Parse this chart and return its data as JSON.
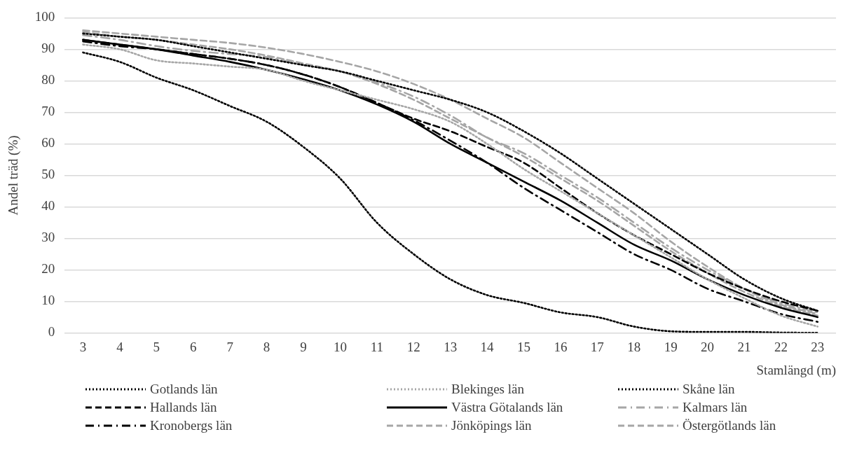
{
  "chart_data": {
    "type": "line",
    "xlabel": "Stamlängd (m)",
    "ylabel": "Andel träd (%)",
    "categories": [
      "3",
      "4",
      "5",
      "6",
      "7",
      "8",
      "9",
      "10",
      "11",
      "12",
      "13",
      "14",
      "15",
      "16",
      "17",
      "18",
      "19",
      "20",
      "21",
      "22",
      "23"
    ],
    "ylim": [
      0,
      100
    ],
    "yticks": [
      0,
      10,
      20,
      30,
      40,
      50,
      60,
      70,
      80,
      90,
      100
    ],
    "grid": "y",
    "legend": "bottom",
    "marker": "none",
    "series": [
      {
        "name": "Gotlands län",
        "color": "#000000",
        "line_style": "dotted",
        "values": [
          89,
          86,
          81,
          77,
          72,
          67,
          59,
          49,
          35,
          25,
          17,
          12,
          9.5,
          6.5,
          5,
          2,
          0.5,
          0.3,
          0.3,
          0.1,
          0
        ]
      },
      {
        "name": "Blekinges län",
        "color": "#a6a6a6",
        "line_style": "dotted",
        "values": [
          91.5,
          90,
          86.5,
          85.5,
          84.5,
          83.5,
          80,
          77,
          74,
          71,
          67,
          60,
          52,
          45,
          38,
          31,
          24,
          17,
          11,
          5.5,
          2
        ]
      },
      {
        "name": "Skåne län",
        "color": "#000000",
        "line_style": "dotted",
        "values": [
          95,
          94,
          93,
          91,
          89,
          87,
          85,
          83,
          80,
          77,
          74,
          70,
          64,
          57,
          49,
          41,
          33,
          25,
          17,
          11,
          7
        ]
      },
      {
        "name": "Hallands län",
        "color": "#000000",
        "line_style": "dashed",
        "values": [
          93,
          91.5,
          90,
          88.5,
          87,
          85,
          82,
          78,
          73,
          68,
          64,
          59,
          54,
          46,
          38,
          31,
          25,
          19,
          14,
          10,
          7
        ]
      },
      {
        "name": "Västra Götalands län",
        "color": "#000000",
        "line_style": "solid",
        "values": [
          93,
          91.5,
          90,
          88,
          86,
          83.5,
          80.5,
          77,
          72.5,
          67,
          60,
          54,
          48,
          42,
          35,
          28,
          23,
          17,
          12,
          8,
          5
        ]
      },
      {
        "name": "Kalmars län",
        "color": "#a6a6a6",
        "line_style": "dashdot",
        "values": [
          94.5,
          93,
          91,
          89.5,
          88.5,
          87.5,
          85,
          83,
          79.5,
          75,
          69,
          62,
          57,
          50,
          43,
          35,
          27,
          20,
          14,
          9.5,
          6.5
        ]
      },
      {
        "name": "Kronobergs län",
        "color": "#000000",
        "line_style": "dashdot",
        "values": [
          92.5,
          91,
          90,
          88.5,
          87,
          85,
          82,
          78,
          73,
          67.5,
          61,
          54,
          46,
          39,
          32,
          25,
          20,
          14,
          10,
          6,
          3.5
        ]
      },
      {
        "name": "Jönköpings län",
        "color": "#a6a6a6",
        "line_style": "dashed",
        "values": [
          96,
          95,
          94,
          93,
          92,
          90.5,
          88.5,
          86,
          83,
          79,
          74,
          68,
          62,
          54,
          46,
          38,
          29,
          21,
          14,
          9,
          6
        ]
      },
      {
        "name": "Östergötlands län",
        "color": "#a6a6a6",
        "line_style": "dashed",
        "values": [
          95.5,
          94,
          93,
          91.5,
          90,
          88,
          85.5,
          83,
          79,
          74,
          68,
          62,
          56,
          49,
          42,
          34,
          26,
          19,
          13,
          8.5,
          5.5
        ]
      }
    ]
  }
}
